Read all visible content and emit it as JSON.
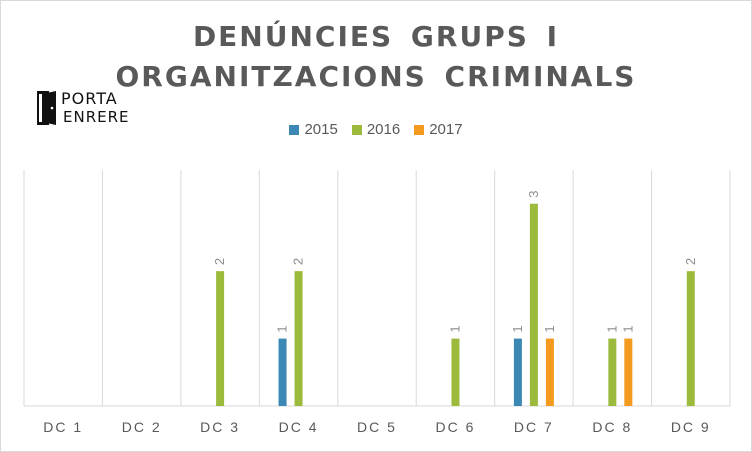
{
  "title_line1": "DENÚNCIES GRUPS I",
  "title_line2": "ORGANITZACIONS CRIMINALS",
  "logo": {
    "top": "PORTA",
    "bottom": "ENRERE"
  },
  "colors": {
    "2015": "#3a88b3",
    "2016": "#9cbb3c",
    "2017": "#f39a1f"
  },
  "chart_data": {
    "type": "bar",
    "title": "DENÚNCIES GRUPS I ORGANITZACIONS CRIMINALS",
    "categories": [
      "DC 1",
      "DC 2",
      "DC 3",
      "DC 4",
      "DC 5",
      "DC 6",
      "DC 7",
      "DC 8",
      "DC 9"
    ],
    "series": [
      {
        "name": "2015",
        "values": [
          0,
          0,
          0,
          1,
          0,
          0,
          1,
          0,
          0
        ]
      },
      {
        "name": "2016",
        "values": [
          0,
          0,
          2,
          2,
          0,
          1,
          3,
          1,
          2
        ]
      },
      {
        "name": "2017",
        "values": [
          0,
          0,
          0,
          0,
          0,
          0,
          1,
          1,
          0
        ]
      }
    ],
    "ylim": [
      0,
      3.5
    ],
    "legend": "top",
    "grid": "vertical category separators"
  }
}
